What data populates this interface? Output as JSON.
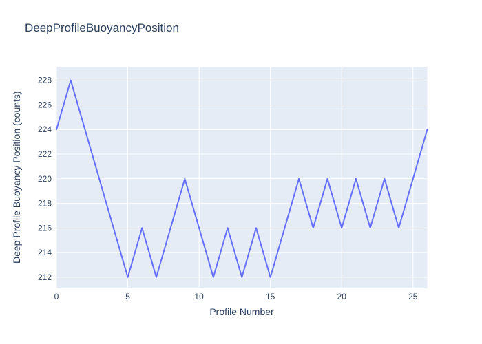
{
  "chart_data": {
    "type": "line",
    "title": "DeepProfileBuoyancyPosition",
    "xlabel": "Profile Number",
    "ylabel": "Deep Profile Buoyancy Position (counts)",
    "x": [
      0,
      1,
      2,
      3,
      4,
      5,
      6,
      7,
      8,
      9,
      10,
      11,
      12,
      13,
      14,
      15,
      16,
      17,
      18,
      19,
      20,
      21,
      22,
      23,
      24,
      25,
      26
    ],
    "y": [
      224,
      228,
      224,
      220,
      216,
      212,
      216,
      212,
      216,
      220,
      216,
      212,
      216,
      212,
      216,
      212,
      216,
      220,
      216,
      220,
      216,
      220,
      216,
      220,
      216,
      220,
      224
    ],
    "xticks": [
      0,
      5,
      10,
      15,
      20,
      25
    ],
    "yticks": [
      212,
      214,
      216,
      218,
      220,
      222,
      224,
      226,
      228
    ],
    "xlim": [
      0,
      26
    ],
    "ylim": [
      211.1,
      229.1
    ],
    "grid": true,
    "legend": false,
    "colors": {
      "line": "#636efa",
      "plot_background": "#e5ecf6",
      "grid": "#ffffff",
      "text": "#2a3f5f",
      "paper_background": "#ffffff"
    }
  }
}
